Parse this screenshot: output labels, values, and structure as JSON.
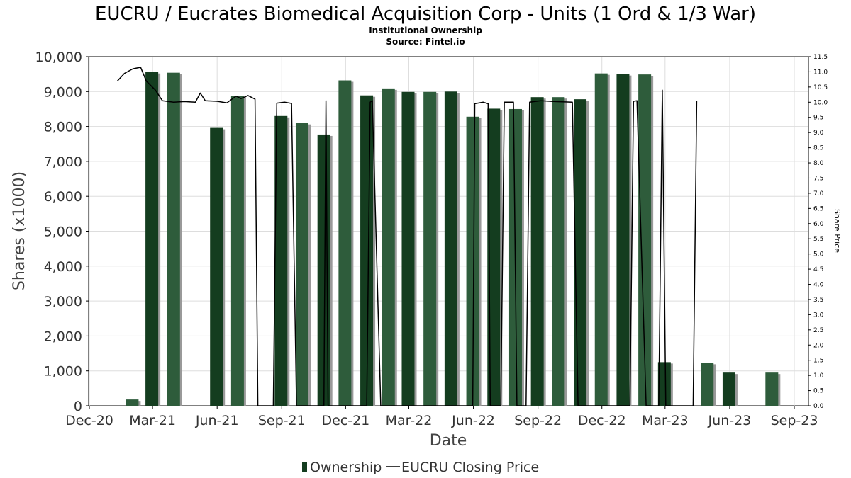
{
  "chart_data": {
    "type": "bar",
    "title": "EUCRU / Eucrates Biomedical Acquisition Corp - Units (1 Ord & 1/3 War)",
    "subtitle": "Institutional Ownership",
    "source": "Source: Fintel.io",
    "xlabel": "Date",
    "ylabel": "Shares (x1000)",
    "y2label": "Share Price",
    "ylim": [
      0,
      10000
    ],
    "y2lim": [
      0,
      11.5
    ],
    "yticks": [
      "0",
      "1,000",
      "2,000",
      "3,000",
      "4,000",
      "5,000",
      "6,000",
      "7,000",
      "8,000",
      "9,000",
      "10,000"
    ],
    "y2ticks": [
      "0.0",
      "0.5",
      "1.0",
      "1.5",
      "2.0",
      "2.5",
      "3.0",
      "3.5",
      "4.0",
      "4.5",
      "5.0",
      "5.5",
      "6.0",
      "6.5",
      "7.0",
      "7.5",
      "8.0",
      "8.5",
      "9.0",
      "9.5",
      "10.0",
      "10.5",
      "11.0",
      "11.5"
    ],
    "xticks": [
      "Dec-20",
      "Mar-21",
      "Jun-21",
      "Sep-21",
      "Dec-21",
      "Mar-22",
      "Jun-22",
      "Sep-22",
      "Dec-22",
      "Mar-23",
      "Jun-23",
      "Sep-23"
    ],
    "grid": true,
    "legend_placement": "bottom",
    "colors": {
      "bar_dark": "#143d1f",
      "bar_mid": "#2e5c3b",
      "bar_shadow": "#999999",
      "price_line": "#000000",
      "grid": "#dddddd"
    },
    "series": [
      {
        "name": "Ownership",
        "type": "bar",
        "points": [
          {
            "date": "2021-01-31",
            "value": 180
          },
          {
            "date": "2021-02-28",
            "value": 9560
          },
          {
            "date": "2021-03-31",
            "value": 9540
          },
          {
            "date": "2021-05-31",
            "value": 7960
          },
          {
            "date": "2021-06-30",
            "value": 8880
          },
          {
            "date": "2021-08-31",
            "value": 8300
          },
          {
            "date": "2021-09-30",
            "value": 8100
          },
          {
            "date": "2021-10-31",
            "value": 7770
          },
          {
            "date": "2021-11-30",
            "value": 9320
          },
          {
            "date": "2021-12-31",
            "value": 8890
          },
          {
            "date": "2022-01-31",
            "value": 9090
          },
          {
            "date": "2022-02-28",
            "value": 8990
          },
          {
            "date": "2022-03-31",
            "value": 8990
          },
          {
            "date": "2022-04-30",
            "value": 9000
          },
          {
            "date": "2022-05-31",
            "value": 8280
          },
          {
            "date": "2022-06-30",
            "value": 8510
          },
          {
            "date": "2022-07-31",
            "value": 8500
          },
          {
            "date": "2022-08-31",
            "value": 8840
          },
          {
            "date": "2022-09-30",
            "value": 8840
          },
          {
            "date": "2022-10-31",
            "value": 8780
          },
          {
            "date": "2022-11-30",
            "value": 9520
          },
          {
            "date": "2022-12-31",
            "value": 9500
          },
          {
            "date": "2023-01-31",
            "value": 9490
          },
          {
            "date": "2023-02-28",
            "value": 1250
          },
          {
            "date": "2023-04-30",
            "value": 1230
          },
          {
            "date": "2023-05-31",
            "value": 950
          },
          {
            "date": "2023-07-31",
            "value": 950
          }
        ]
      },
      {
        "name": "EUCRU Closing Price",
        "type": "line",
        "points": [
          {
            "date": "2021-01-10",
            "value": 10.7
          },
          {
            "date": "2021-01-20",
            "value": 10.95
          },
          {
            "date": "2021-02-01",
            "value": 11.1
          },
          {
            "date": "2021-02-12",
            "value": 11.15
          },
          {
            "date": "2021-02-20",
            "value": 10.7
          },
          {
            "date": "2021-03-05",
            "value": 10.4
          },
          {
            "date": "2021-03-15",
            "value": 10.05
          },
          {
            "date": "2021-03-31",
            "value": 10.0
          },
          {
            "date": "2021-04-15",
            "value": 10.02
          },
          {
            "date": "2021-05-01",
            "value": 10.0
          },
          {
            "date": "2021-05-08",
            "value": 10.3
          },
          {
            "date": "2021-05-15",
            "value": 10.05
          },
          {
            "date": "2021-06-01",
            "value": 10.03
          },
          {
            "date": "2021-06-15",
            "value": 9.98
          },
          {
            "date": "2021-06-28",
            "value": 10.2
          },
          {
            "date": "2021-07-05",
            "value": 10.12
          },
          {
            "date": "2021-07-15",
            "value": 10.22
          },
          {
            "date": "2021-07-25",
            "value": 10.1
          },
          {
            "date": "2021-07-29",
            "value": 0.0
          },
          {
            "date": "2021-08-20",
            "value": 0.0
          },
          {
            "date": "2021-08-25",
            "value": 9.97
          },
          {
            "date": "2021-09-05",
            "value": 10.0
          },
          {
            "date": "2021-09-15",
            "value": 9.96
          },
          {
            "date": "2021-09-22",
            "value": 0.0
          },
          {
            "date": "2021-10-31",
            "value": 0.0
          },
          {
            "date": "2021-11-03",
            "value": 10.05
          },
          {
            "date": "2021-11-06",
            "value": 0.0
          },
          {
            "date": "2021-12-31",
            "value": 0.0
          },
          {
            "date": "2022-01-05",
            "value": 10.0
          },
          {
            "date": "2022-01-08",
            "value": 10.05
          },
          {
            "date": "2022-01-20",
            "value": 0.0
          },
          {
            "date": "2022-05-31",
            "value": 0.0
          },
          {
            "date": "2022-06-03",
            "value": 9.95
          },
          {
            "date": "2022-06-15",
            "value": 10.0
          },
          {
            "date": "2022-06-22",
            "value": 9.95
          },
          {
            "date": "2022-06-25",
            "value": 0.0
          },
          {
            "date": "2022-07-10",
            "value": 0.0
          },
          {
            "date": "2022-07-15",
            "value": 10.0
          },
          {
            "date": "2022-07-28",
            "value": 10.0
          },
          {
            "date": "2022-08-02",
            "value": 0.0
          },
          {
            "date": "2022-08-15",
            "value": 0.0
          },
          {
            "date": "2022-08-20",
            "value": 10.0
          },
          {
            "date": "2022-09-05",
            "value": 10.05
          },
          {
            "date": "2022-09-25",
            "value": 10.02
          },
          {
            "date": "2022-10-20",
            "value": 10.0
          },
          {
            "date": "2022-10-28",
            "value": 0.0
          },
          {
            "date": "2023-01-10",
            "value": 0.0
          },
          {
            "date": "2023-01-15",
            "value": 10.03
          },
          {
            "date": "2023-01-20",
            "value": 10.05
          },
          {
            "date": "2023-02-02",
            "value": 0.0
          },
          {
            "date": "2023-02-20",
            "value": 0.0
          },
          {
            "date": "2023-02-25",
            "value": 10.4
          },
          {
            "date": "2023-03-02",
            "value": 0.0
          },
          {
            "date": "2023-04-10",
            "value": 0.0
          },
          {
            "date": "2023-04-15",
            "value": 10.05
          }
        ]
      }
    ]
  }
}
